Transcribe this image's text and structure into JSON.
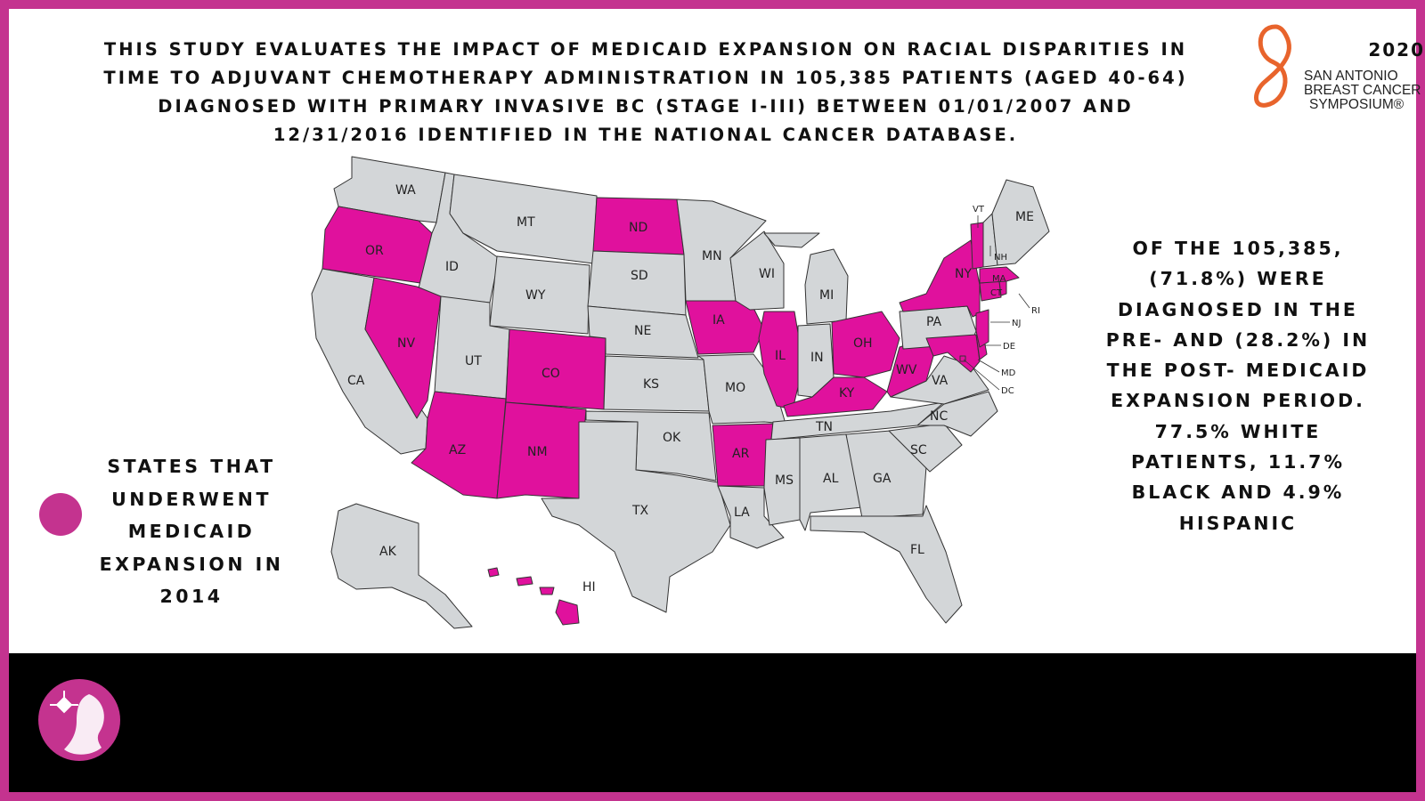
{
  "header": {
    "text": "THIS STUDY EVALUATES THE IMPACT OF MEDICAID EXPANSION ON RACIAL DISPARITIES IN TIME TO ADJUVANT CHEMOTHERAPY ADMINISTRATION IN 105,385 PATIENTS (AGED 40-64) DIAGNOSED WITH PRIMARY INVASIVE BC (STAGE I-III) BETWEEN 01/01/2007 AND 12/31/2016 IDENTIFIED IN THE NATIONAL CANCER DATABASE."
  },
  "conference_logo": {
    "year": "2020",
    "line1": "SAN ANTONIO",
    "line2": "BREAST CANCER",
    "line3": "SYMPOSIUM®"
  },
  "stats": {
    "text": "OF THE 105,385, (71.8%) WERE DIAGNOSED IN THE PRE- AND (28.2%) IN THE POST- MEDICAID EXPANSION PERIOD. 77.5% WHITE PATIENTS, 11.7% BLACK AND 4.9% HISPANIC"
  },
  "legend": {
    "label": "STATES THAT UNDERWENT MEDICAID EXPANSION IN 2014",
    "color": "#e0119d"
  },
  "colors": {
    "frame": "#c4338f",
    "expansion": "#e0119d",
    "other": "#d3d6d8",
    "state_border": "#333333",
    "footer": "#000000"
  },
  "map": {
    "expansion_states": [
      "OR",
      "NV",
      "AZ",
      "CO",
      "NM",
      "ND",
      "IA",
      "AR",
      "IL",
      "KY",
      "OH",
      "WV",
      "NY",
      "NJ",
      "MD",
      "MA",
      "VT",
      "RI",
      "CT",
      "DE",
      "DC",
      "HI"
    ],
    "state_labels": {
      "WA": "WA",
      "OR": "OR",
      "CA": "CA",
      "NV": "NV",
      "ID": "ID",
      "MT": "MT",
      "WY": "WY",
      "UT": "UT",
      "AZ": "AZ",
      "CO": "CO",
      "NM": "NM",
      "ND": "ND",
      "SD": "SD",
      "NE": "NE",
      "KS": "KS",
      "OK": "OK",
      "TX": "TX",
      "MN": "MN",
      "IA": "IA",
      "MO": "MO",
      "AR": "AR",
      "LA": "LA",
      "WI": "WI",
      "IL": "IL",
      "MI": "MI",
      "IN": "IN",
      "OH": "OH",
      "KY": "KY",
      "TN": "TN",
      "MS": "MS",
      "AL": "AL",
      "GA": "GA",
      "FL": "FL",
      "SC": "SC",
      "NC": "NC",
      "VA": "VA",
      "WV": "WV",
      "PA": "PA",
      "NY": "NY",
      "ME": "ME",
      "AK": "AK",
      "HI": "HI"
    },
    "small_labels": {
      "VT": "VT",
      "NH": "NH",
      "MA": "MA",
      "CT": "CT",
      "RI": "RI",
      "NJ": "NJ",
      "DE": "DE",
      "MD": "MD",
      "DC": "DC"
    }
  }
}
